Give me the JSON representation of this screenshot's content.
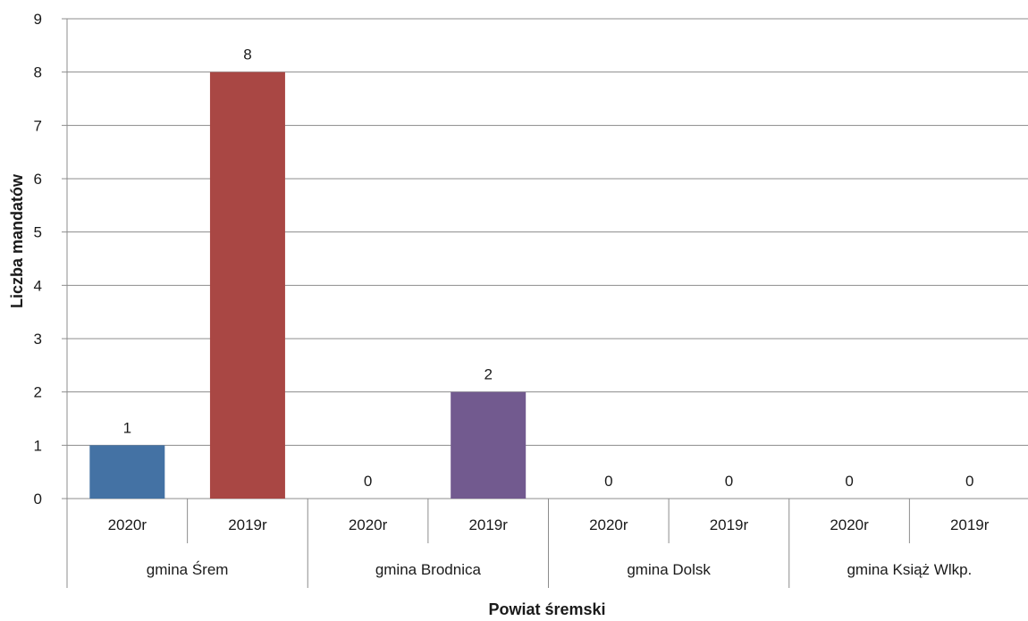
{
  "chart_data": {
    "type": "bar",
    "title": "",
    "xlabel": "Powiat śremski",
    "ylabel": "Liczba mandatów",
    "ylim": [
      0,
      9
    ],
    "yticks": [
      0,
      1,
      2,
      3,
      4,
      5,
      6,
      7,
      8,
      9
    ],
    "grid": true,
    "legend": "none",
    "groups": [
      {
        "name": "gmina Śrem",
        "bars": [
          {
            "category": "2020r",
            "value": 1,
            "color": "#4472a4"
          },
          {
            "category": "2019r",
            "value": 8,
            "color": "#a94744"
          }
        ]
      },
      {
        "name": "gmina Brodnica",
        "bars": [
          {
            "category": "2020r",
            "value": 0,
            "color": "#4472a4"
          },
          {
            "category": "2019r",
            "value": 2,
            "color": "#725a8f"
          }
        ]
      },
      {
        "name": "gmina Dolsk",
        "bars": [
          {
            "category": "2020r",
            "value": 0,
            "color": "#4472a4"
          },
          {
            "category": "2019r",
            "value": 0,
            "color": "#a94744"
          }
        ]
      },
      {
        "name": "gmina Książ Wlkp.",
        "bars": [
          {
            "category": "2020r",
            "value": 0,
            "color": "#4472a4"
          },
          {
            "category": "2019r",
            "value": 0,
            "color": "#a94744"
          }
        ]
      }
    ]
  }
}
